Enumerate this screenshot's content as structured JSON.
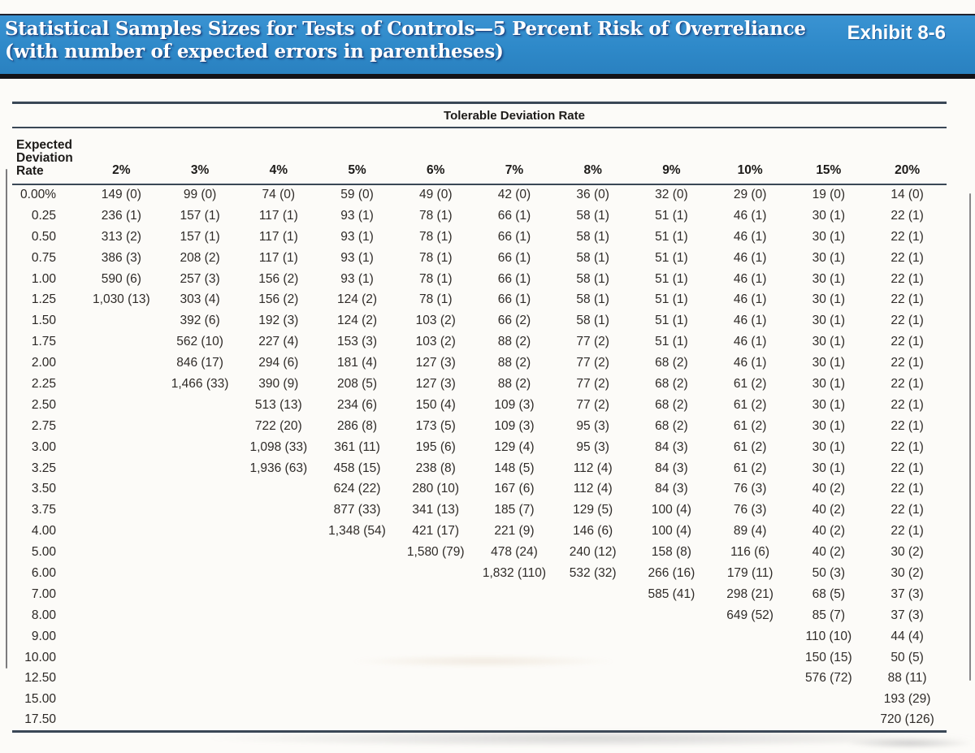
{
  "banner": {
    "title_line1": "Statistical Samples Sizes for Tests of Controls—5 Percent Risk of Overreliance",
    "title_line2": "(with number of expected errors in parentheses)",
    "exhibit": "Exhibit 8-6",
    "bg_color": "#2e89c9"
  },
  "table": {
    "span_header": "Tolerable Deviation Rate",
    "row_header": "Expected\nDeviation\nRate",
    "columns": [
      "2%",
      "3%",
      "4%",
      "5%",
      "6%",
      "7%",
      "8%",
      "9%",
      "10%",
      "15%",
      "20%"
    ],
    "rows": [
      {
        "label": "0.00%",
        "values": [
          "149 (0)",
          "99 (0)",
          "74 (0)",
          "59 (0)",
          "49 (0)",
          "42 (0)",
          "36 (0)",
          "32 (0)",
          "29 (0)",
          "19 (0)",
          "14 (0)"
        ]
      },
      {
        "label": "0.25",
        "values": [
          "236 (1)",
          "157 (1)",
          "117 (1)",
          "93 (1)",
          "78 (1)",
          "66 (1)",
          "58 (1)",
          "51 (1)",
          "46 (1)",
          "30 (1)",
          "22 (1)"
        ]
      },
      {
        "label": "0.50",
        "values": [
          "313 (2)",
          "157 (1)",
          "117 (1)",
          "93 (1)",
          "78 (1)",
          "66 (1)",
          "58 (1)",
          "51 (1)",
          "46 (1)",
          "30 (1)",
          "22 (1)"
        ]
      },
      {
        "label": "0.75",
        "values": [
          "386 (3)",
          "208 (2)",
          "117 (1)",
          "93 (1)",
          "78 (1)",
          "66 (1)",
          "58 (1)",
          "51 (1)",
          "46 (1)",
          "30 (1)",
          "22 (1)"
        ]
      },
      {
        "label": "1.00",
        "values": [
          "590 (6)",
          "257 (3)",
          "156 (2)",
          "93 (1)",
          "78 (1)",
          "66 (1)",
          "58 (1)",
          "51 (1)",
          "46 (1)",
          "30 (1)",
          "22 (1)"
        ]
      },
      {
        "label": "1.25",
        "values": [
          "1,030 (13)",
          "303 (4)",
          "156 (2)",
          "124 (2)",
          "78 (1)",
          "66 (1)",
          "58 (1)",
          "51 (1)",
          "46 (1)",
          "30 (1)",
          "22 (1)"
        ]
      },
      {
        "label": "1.50",
        "values": [
          "",
          "392 (6)",
          "192 (3)",
          "124 (2)",
          "103 (2)",
          "66 (2)",
          "58 (1)",
          "51 (1)",
          "46 (1)",
          "30 (1)",
          "22 (1)"
        ]
      },
      {
        "label": "1.75",
        "values": [
          "",
          "562 (10)",
          "227 (4)",
          "153 (3)",
          "103 (2)",
          "88 (2)",
          "77 (2)",
          "51 (1)",
          "46 (1)",
          "30 (1)",
          "22 (1)"
        ]
      },
      {
        "label": "2.00",
        "values": [
          "",
          "846 (17)",
          "294 (6)",
          "181 (4)",
          "127 (3)",
          "88 (2)",
          "77 (2)",
          "68 (2)",
          "46 (1)",
          "30 (1)",
          "22 (1)"
        ]
      },
      {
        "label": "2.25",
        "values": [
          "",
          "1,466 (33)",
          "390 (9)",
          "208 (5)",
          "127 (3)",
          "88 (2)",
          "77 (2)",
          "68 (2)",
          "61 (2)",
          "30 (1)",
          "22 (1)"
        ]
      },
      {
        "label": "2.50",
        "values": [
          "",
          "",
          "513 (13)",
          "234 (6)",
          "150 (4)",
          "109 (3)",
          "77 (2)",
          "68 (2)",
          "61 (2)",
          "30 (1)",
          "22 (1)"
        ]
      },
      {
        "label": "2.75",
        "values": [
          "",
          "",
          "722 (20)",
          "286 (8)",
          "173 (5)",
          "109 (3)",
          "95 (3)",
          "68 (2)",
          "61 (2)",
          "30 (1)",
          "22 (1)"
        ]
      },
      {
        "label": "3.00",
        "values": [
          "",
          "",
          "1,098 (33)",
          "361 (11)",
          "195 (6)",
          "129 (4)",
          "95 (3)",
          "84 (3)",
          "61 (2)",
          "30 (1)",
          "22 (1)"
        ]
      },
      {
        "label": "3.25",
        "values": [
          "",
          "",
          "1,936 (63)",
          "458 (15)",
          "238 (8)",
          "148 (5)",
          "112 (4)",
          "84 (3)",
          "61 (2)",
          "30 (1)",
          "22 (1)"
        ]
      },
      {
        "label": "3.50",
        "values": [
          "",
          "",
          "",
          "624 (22)",
          "280 (10)",
          "167 (6)",
          "112 (4)",
          "84 (3)",
          "76 (3)",
          "40 (2)",
          "22 (1)"
        ]
      },
      {
        "label": "3.75",
        "values": [
          "",
          "",
          "",
          "877 (33)",
          "341 (13)",
          "185 (7)",
          "129 (5)",
          "100 (4)",
          "76 (3)",
          "40 (2)",
          "22 (1)"
        ]
      },
      {
        "label": "4.00",
        "values": [
          "",
          "",
          "",
          "1,348 (54)",
          "421 (17)",
          "221 (9)",
          "146 (6)",
          "100 (4)",
          "89 (4)",
          "40 (2)",
          "22 (1)"
        ]
      },
      {
        "label": "5.00",
        "values": [
          "",
          "",
          "",
          "",
          "1,580 (79)",
          "478 (24)",
          "240 (12)",
          "158 (8)",
          "116 (6)",
          "40 (2)",
          "30 (2)"
        ]
      },
      {
        "label": "6.00",
        "values": [
          "",
          "",
          "",
          "",
          "",
          "1,832 (110)",
          "532 (32)",
          "266 (16)",
          "179 (11)",
          "50 (3)",
          "30 (2)"
        ]
      },
      {
        "label": "7.00",
        "values": [
          "",
          "",
          "",
          "",
          "",
          "",
          "",
          "585 (41)",
          "298 (21)",
          "68 (5)",
          "37 (3)"
        ]
      },
      {
        "label": "8.00",
        "values": [
          "",
          "",
          "",
          "",
          "",
          "",
          "",
          "",
          "649 (52)",
          "85 (7)",
          "37 (3)"
        ]
      },
      {
        "label": "9.00",
        "values": [
          "",
          "",
          "",
          "",
          "",
          "",
          "",
          "",
          "",
          "110 (10)",
          "44 (4)"
        ]
      },
      {
        "label": "10.00",
        "values": [
          "",
          "",
          "",
          "",
          "",
          "",
          "",
          "",
          "",
          "150 (15)",
          "50 (5)"
        ]
      },
      {
        "label": "12.50",
        "values": [
          "",
          "",
          "",
          "",
          "",
          "",
          "",
          "",
          "",
          "576 (72)",
          "88 (11)"
        ]
      },
      {
        "label": "15.00",
        "values": [
          "",
          "",
          "",
          "",
          "",
          "",
          "",
          "",
          "",
          "",
          "193 (29)"
        ]
      },
      {
        "label": "17.50",
        "values": [
          "",
          "",
          "",
          "",
          "",
          "",
          "",
          "",
          "",
          "",
          "720 (126)"
        ]
      }
    ]
  }
}
